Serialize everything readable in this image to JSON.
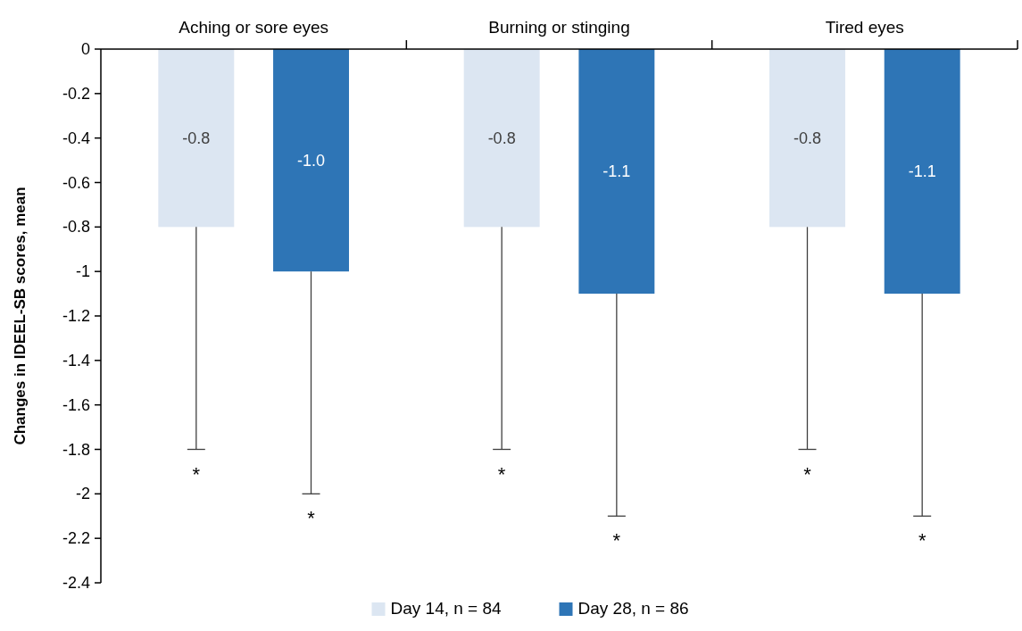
{
  "chart_data": {
    "type": "bar",
    "ylabel": "Changes in IDEEL-SB scores, mean",
    "categories": [
      "Aching or sore eyes",
      "Burning or stinging",
      "Tired eyes"
    ],
    "series": [
      {
        "name": "Day 14, n = 84",
        "color": "#dce6f2",
        "values": [
          -0.8,
          -0.8,
          -0.8
        ],
        "value_labels": [
          "-0.8",
          "-0.8",
          "-0.8"
        ],
        "errors": [
          [
            -1.8,
            -0.8
          ],
          [
            -1.8,
            -0.8
          ],
          [
            -1.8,
            -0.8
          ]
        ]
      },
      {
        "name": "Day 28, n = 86",
        "color": "#2e75b6",
        "values": [
          -1.0,
          -1.1,
          -1.1
        ],
        "value_labels": [
          "-1.0",
          "-1.1",
          "-1.1"
        ],
        "errors": [
          [
            -2.0,
            -1.0
          ],
          [
            -2.1,
            -1.1
          ],
          [
            -2.1,
            -1.1
          ]
        ]
      }
    ],
    "ylim": [
      -2.4,
      0
    ],
    "yticks": [
      0,
      -0.2,
      -0.4,
      -0.6,
      -0.8,
      -1,
      -1.2,
      -1.4,
      -1.6,
      -1.8,
      -2,
      -2.2,
      -2.4
    ],
    "annotations": [
      "*",
      "*",
      "*",
      "*",
      "*",
      "*"
    ],
    "legend": "bottom",
    "grid": false
  }
}
